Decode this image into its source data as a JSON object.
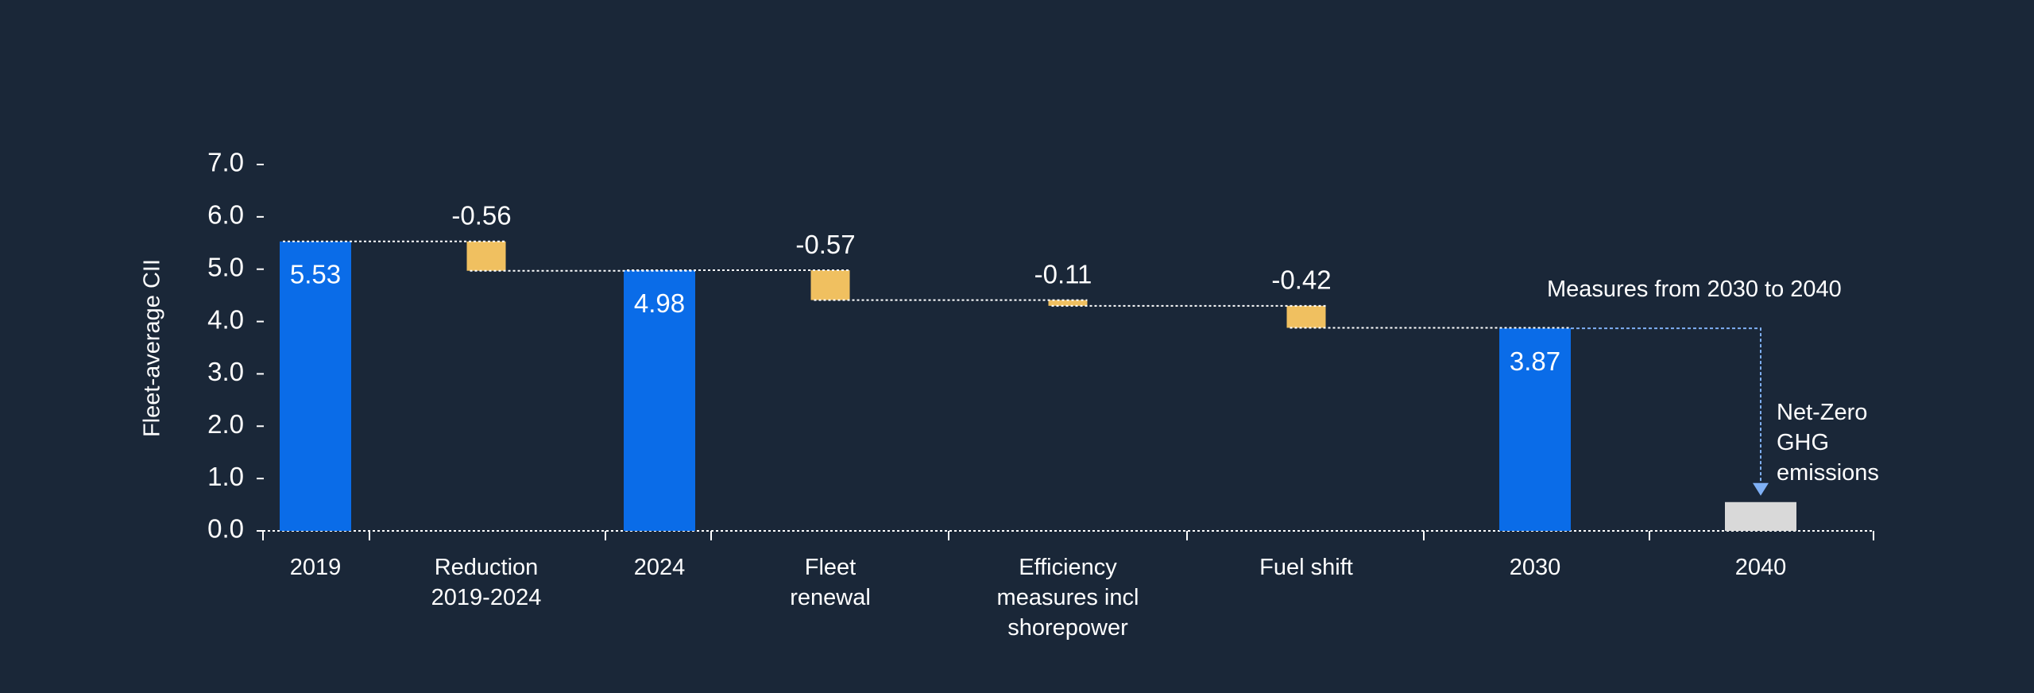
{
  "chart_data": {
    "type": "waterfall",
    "y_label": "Fleet-average CII",
    "categories": [
      "2019",
      "Reduction\n2019-2024",
      "2024",
      "Fleet\nrenewal",
      "Efficiency\nmeasures incl\nshorepower",
      "Fuel shift",
      "2030",
      "2040"
    ],
    "values": [
      5.53,
      -0.56,
      4.98,
      -0.57,
      -0.11,
      -0.42,
      3.87,
      0.55
    ],
    "value_labels": [
      "5.53",
      "-0.56",
      "4.98",
      "-0.57",
      "-0.11",
      "-0.42",
      "3.87",
      null
    ],
    "measure": [
      "total",
      "relative",
      "total",
      "relative",
      "relative",
      "relative",
      "total",
      "total"
    ],
    "colors": [
      "#0a6ce8",
      "#f0c060",
      "#0a6ce8",
      "#f0c060",
      "#f0c060",
      "#f0c060",
      "#0a6ce8",
      "#d9d9d9"
    ],
    "ylim": [
      0,
      7
    ],
    "yticks": [
      {
        "value": 0,
        "label": "0.0"
      },
      {
        "value": 1,
        "label": "1.0"
      },
      {
        "value": 2,
        "label": "2.0"
      },
      {
        "value": 3,
        "label": "3.0"
      },
      {
        "value": 4,
        "label": "4.0"
      },
      {
        "value": 5,
        "label": "5.0"
      },
      {
        "value": 6,
        "label": "6.0"
      },
      {
        "value": 7,
        "label": "7.0"
      }
    ],
    "annotations": [
      "Measures from 2030 to 2040",
      "Net-Zero\nGHG\nemissions"
    ]
  }
}
